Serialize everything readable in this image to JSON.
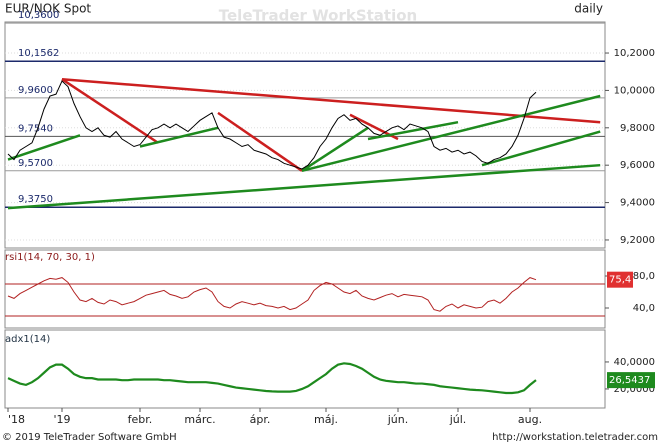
{
  "header": {
    "watermark": "TeleTrader WorkStation",
    "interval": "daily"
  },
  "footer": {
    "copyright": "© 2019 TeleTrader Software GmbH",
    "url": "http://workstation.teletrader.com"
  },
  "chart_data": [
    {
      "type": "line",
      "title": "EUR/NOK Spot",
      "color": "#000000",
      "grid": true,
      "categories": [
        "'18",
        null,
        null,
        null,
        null,
        null,
        null,
        null,
        null,
        "'19",
        null,
        null,
        null,
        null,
        null,
        null,
        null,
        null,
        null,
        null,
        null,
        null,
        "febr.",
        null,
        null,
        null,
        null,
        null,
        null,
        null,
        null,
        null,
        "márc.",
        null,
        null,
        null,
        null,
        null,
        null,
        null,
        null,
        null,
        "ápr.",
        null,
        null,
        null,
        null,
        null,
        null,
        null,
        null,
        null,
        null,
        "máj.",
        null,
        null,
        null,
        null,
        null,
        null,
        null,
        null,
        null,
        null,
        null,
        "jún.",
        null,
        null,
        null,
        null,
        null,
        null,
        null,
        null,
        null,
        "júl.",
        null,
        null,
        null,
        null,
        null,
        null,
        null,
        null,
        null,
        null,
        null,
        "aug.",
        null
      ],
      "values": [
        9.66,
        9.63,
        9.68,
        9.7,
        9.72,
        9.8,
        9.9,
        9.97,
        9.98,
        10.05,
        10.02,
        9.93,
        9.86,
        9.8,
        9.78,
        9.8,
        9.76,
        9.75,
        9.78,
        9.74,
        9.72,
        9.7,
        9.71,
        9.75,
        9.79,
        9.8,
        9.82,
        9.8,
        9.82,
        9.8,
        9.78,
        9.81,
        9.84,
        9.86,
        9.88,
        9.8,
        9.75,
        9.74,
        9.72,
        9.7,
        9.71,
        9.68,
        9.67,
        9.66,
        9.64,
        9.63,
        9.61,
        9.6,
        9.59,
        9.58,
        9.6,
        9.64,
        9.7,
        9.74,
        9.8,
        9.85,
        9.87,
        9.84,
        9.85,
        9.82,
        9.8,
        9.77,
        9.76,
        9.78,
        9.8,
        9.81,
        9.79,
        9.82,
        9.81,
        9.8,
        9.78,
        9.7,
        9.68,
        9.69,
        9.67,
        9.68,
        9.66,
        9.67,
        9.65,
        9.62,
        9.61,
        9.63,
        9.64,
        9.66,
        9.7,
        9.76,
        9.85,
        9.96,
        9.99
      ],
      "ylim": [
        9.157,
        10.366
      ],
      "yticks": [
        {
          "value": 10.2,
          "label": "10,2000"
        },
        {
          "value": 10.0,
          "label": "10,0000"
        },
        {
          "value": 9.8,
          "label": "9,8000"
        },
        {
          "value": 9.6,
          "label": "9,6000"
        },
        {
          "value": 9.4,
          "label": "9,4000"
        },
        {
          "value": 9.2,
          "label": "9,2000"
        }
      ],
      "levels": [
        {
          "value": 10.36,
          "label": "10,3600",
          "color": "#9a9a9a"
        },
        {
          "value": 10.1562,
          "label": "10,1562",
          "color": "#1c2a6b"
        },
        {
          "value": 9.96,
          "label": "9,9600",
          "color": "#9a9a9a"
        },
        {
          "value": 9.754,
          "label": "9,7540",
          "color": "#555555"
        },
        {
          "value": 9.57,
          "label": "9,5700",
          "color": "#9a9a9a"
        },
        {
          "value": 9.375,
          "label": "9,3750",
          "color": "#1c2a6b"
        }
      ],
      "trendlines": [
        {
          "color": "#cc1f1f",
          "x": [
            9,
            98.7
          ],
          "y": [
            10.06,
            9.83
          ]
        },
        {
          "color": "#cc1f1f",
          "x": [
            9,
            25
          ],
          "y": [
            10.06,
            9.72
          ]
        },
        {
          "color": "#cc1f1f",
          "x": [
            35,
            49
          ],
          "y": [
            9.88,
            9.57
          ]
        },
        {
          "color": "#cc1f1f",
          "x": [
            57,
            65
          ],
          "y": [
            9.87,
            9.74
          ]
        },
        {
          "color": "#1e8a1e",
          "x": [
            0,
            98.7
          ],
          "y": [
            9.37,
            9.6
          ]
        },
        {
          "color": "#1e8a1e",
          "x": [
            49,
            98.7
          ],
          "y": [
            9.57,
            9.97
          ]
        },
        {
          "color": "#1e8a1e",
          "x": [
            0,
            12
          ],
          "y": [
            9.63,
            9.76
          ]
        },
        {
          "color": "#1e8a1e",
          "x": [
            22,
            35
          ],
          "y": [
            9.7,
            9.8
          ]
        },
        {
          "color": "#1e8a1e",
          "x": [
            49,
            60
          ],
          "y": [
            9.57,
            9.8
          ]
        },
        {
          "color": "#1e8a1e",
          "x": [
            60,
            75
          ],
          "y": [
            9.74,
            9.83
          ]
        },
        {
          "color": "#1e8a1e",
          "x": [
            79,
            98.7
          ],
          "y": [
            9.6,
            9.78
          ]
        }
      ]
    },
    {
      "type": "line",
      "title": "rsi1(14, 70, 30, 1)",
      "color": "#b22222",
      "values": [
        55,
        52,
        58,
        62,
        66,
        70,
        74,
        77,
        76,
        78,
        72,
        60,
        50,
        48,
        52,
        47,
        45,
        50,
        48,
        44,
        46,
        48,
        52,
        56,
        58,
        60,
        62,
        57,
        55,
        52,
        54,
        60,
        63,
        65,
        60,
        48,
        42,
        40,
        45,
        48,
        46,
        44,
        46,
        43,
        42,
        40,
        42,
        38,
        40,
        45,
        50,
        62,
        68,
        72,
        70,
        65,
        60,
        58,
        62,
        55,
        52,
        50,
        53,
        56,
        58,
        54,
        57,
        56,
        55,
        54,
        50,
        38,
        36,
        42,
        45,
        40,
        44,
        42,
        40,
        41,
        48,
        50,
        46,
        52,
        60,
        65,
        72,
        78,
        75.4
      ],
      "ylim": [
        18.75,
        97.5
      ],
      "yticks": [
        {
          "value": 80,
          "label": "80,0"
        },
        {
          "value": 40,
          "label": "40,0"
        }
      ],
      "hlines": [
        70,
        30
      ],
      "last_value": {
        "value": 75.4,
        "label": "75,4"
      }
    },
    {
      "type": "line",
      "title": "adx1(14)",
      "color": "#1e8a1e",
      "values": [
        28,
        26,
        24,
        23,
        25,
        28,
        32,
        36,
        38,
        38,
        35,
        31,
        29,
        28,
        28,
        27,
        27,
        27,
        27,
        26.5,
        26.5,
        27,
        27,
        27,
        27,
        27,
        26.5,
        26.5,
        26,
        25.5,
        25,
        25,
        25,
        25,
        24.5,
        24,
        23,
        22,
        21,
        20.5,
        20,
        19.5,
        19,
        18.5,
        18.2,
        18,
        18,
        18,
        18.5,
        20,
        22,
        25,
        28,
        31,
        35,
        38,
        39,
        38.5,
        37,
        35,
        32,
        29,
        27,
        26,
        25.5,
        25,
        25,
        24.5,
        24,
        24,
        23.5,
        23,
        22,
        21.5,
        21,
        20.5,
        20,
        19.5,
        19.2,
        19,
        18.5,
        18,
        17.5,
        17,
        17,
        17.5,
        19,
        23,
        26.5437
      ],
      "ylim": [
        8.1,
        62.2
      ],
      "yticks": [
        {
          "value": 40,
          "label": "40,0000"
        },
        {
          "value": 20,
          "label": "20,0000"
        }
      ],
      "last_value": {
        "value": 26.5437,
        "label": "26,5437"
      }
    }
  ]
}
